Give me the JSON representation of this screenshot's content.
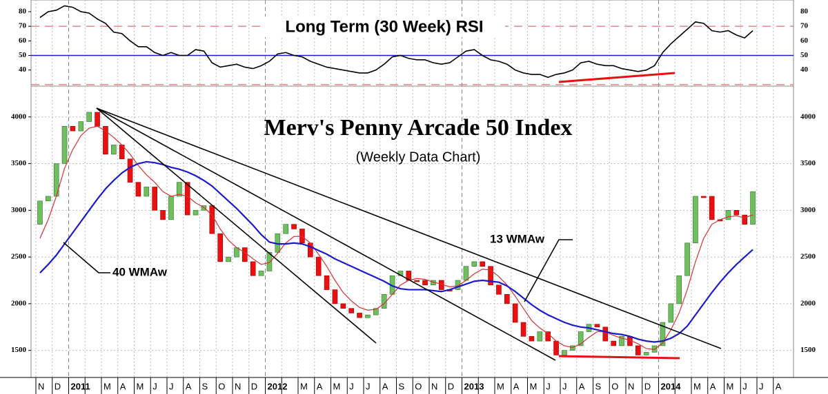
{
  "chart_data": [
    {
      "type": "line",
      "title": "Long Term (30 Week) RSI",
      "ylim": [
        29,
        88
      ],
      "yticks": [
        40,
        50,
        60,
        70,
        80
      ],
      "reference_lines": [
        {
          "value": 70,
          "color": "#e07070",
          "style": "dashed"
        },
        {
          "value": 50,
          "color": "#1a1acc",
          "style": "solid"
        },
        {
          "value": 30,
          "color": "#e07070",
          "style": "dashed"
        }
      ],
      "color": "#000000",
      "values": [
        76,
        80,
        81,
        84,
        83,
        80,
        79,
        75,
        72,
        66,
        65,
        60,
        56,
        56,
        52,
        50,
        52,
        50,
        50,
        54,
        53,
        45,
        42,
        43,
        44,
        42,
        41,
        43,
        46,
        51,
        52,
        50,
        49,
        46,
        44,
        42,
        41,
        40,
        39,
        38,
        38,
        40,
        44,
        49,
        50,
        48,
        47,
        47,
        45,
        44,
        45,
        49,
        53,
        54,
        50,
        47,
        46,
        44,
        40,
        38,
        37,
        37,
        35,
        37,
        38,
        40,
        45,
        46,
        44,
        43,
        43,
        41,
        40,
        39,
        40,
        43,
        52,
        58,
        63,
        68,
        73,
        72,
        67,
        66,
        67,
        64,
        62,
        67,
        null,
        null,
        null,
        null
      ]
    },
    {
      "type": "candlestick",
      "title": "Merv's Penny Arcade 50 Index",
      "subtitle": "(Weekly Data Chart)",
      "categories": [
        "N",
        null,
        "D",
        null,
        "2011",
        null,
        null,
        null,
        "M",
        null,
        "A",
        null,
        "M",
        null,
        "J",
        null,
        "J",
        null,
        "A",
        null,
        "S",
        null,
        "O",
        null,
        "N",
        null,
        "D",
        null,
        "2012",
        null,
        null,
        null,
        "M",
        null,
        "A",
        null,
        "M",
        null,
        "J",
        null,
        "J",
        null,
        "A",
        null,
        "S",
        null,
        "O",
        null,
        "N",
        null,
        "D",
        null,
        "2013",
        null,
        null,
        null,
        "M",
        null,
        "A",
        null,
        "M",
        null,
        "J",
        null,
        "J",
        null,
        "A",
        null,
        "S",
        null,
        "O",
        null,
        "N",
        null,
        "D",
        null,
        "2014",
        null,
        null,
        null,
        "M",
        null,
        "A",
        null,
        "M",
        null,
        "J",
        null,
        "J",
        null,
        "A",
        null
      ],
      "open": [
        2850,
        3100,
        3150,
        3500,
        3900,
        3850,
        3950,
        4050,
        3900,
        3600,
        3700,
        3550,
        3300,
        3150,
        3250,
        3000,
        2900,
        3150,
        3300,
        2950,
        3000,
        3050,
        2750,
        2450,
        2500,
        2600,
        2450,
        2300,
        2350,
        2550,
        2750,
        2850,
        2800,
        2650,
        2500,
        2300,
        2150,
        2000,
        1950,
        1900,
        1850,
        1880,
        1950,
        2100,
        2300,
        2350,
        2250,
        2250,
        2200,
        2250,
        2150,
        2150,
        2250,
        2400,
        2450,
        2400,
        2200,
        2100,
        2000,
        1800,
        1650,
        1600,
        1700,
        1600,
        1450,
        1500,
        1550,
        1700,
        1780,
        1750,
        1600,
        1550,
        1650,
        1550,
        1450,
        1480,
        1550,
        1800,
        2000,
        2300,
        2650,
        3150,
        3150,
        2900,
        2900,
        3000,
        2950,
        2850,
        null,
        null,
        null,
        null
      ],
      "close": [
        3100,
        3150,
        3500,
        3900,
        3850,
        3950,
        4050,
        3900,
        3600,
        3700,
        3550,
        3300,
        3150,
        3250,
        3000,
        2900,
        3150,
        3300,
        2950,
        3000,
        3050,
        2750,
        2450,
        2500,
        2600,
        2450,
        2300,
        2350,
        2550,
        2750,
        2850,
        2800,
        2650,
        2500,
        2300,
        2150,
        2000,
        1950,
        1900,
        1850,
        1880,
        1950,
        2100,
        2300,
        2350,
        2250,
        2250,
        2200,
        2250,
        2150,
        2150,
        2250,
        2400,
        2450,
        2400,
        2200,
        2100,
        2000,
        1800,
        1650,
        1600,
        1700,
        1600,
        1450,
        1500,
        1550,
        1700,
        1780,
        1750,
        1600,
        1550,
        1650,
        1550,
        1450,
        1480,
        1550,
        1800,
        2000,
        2300,
        2650,
        3150,
        3150,
        2900,
        2900,
        3000,
        2950,
        2850,
        3200,
        null,
        null,
        null,
        null
      ],
      "up_color": "#6fbf5f",
      "down_color": "#e81010",
      "series": [
        {
          "name": "13 WMAw",
          "color": "#d83030",
          "values": [
            2700,
            2900,
            3150,
            3450,
            3650,
            3800,
            3880,
            3900,
            3850,
            3780,
            3700,
            3600,
            3480,
            3380,
            3300,
            3200,
            3150,
            3170,
            3150,
            3080,
            3030,
            2950,
            2800,
            2680,
            2600,
            2550,
            2480,
            2420,
            2440,
            2540,
            2650,
            2720,
            2720,
            2650,
            2530,
            2400,
            2250,
            2120,
            2030,
            1960,
            1930,
            1940,
            2000,
            2100,
            2200,
            2250,
            2270,
            2260,
            2230,
            2210,
            2180,
            2190,
            2250,
            2320,
            2370,
            2360,
            2290,
            2200,
            2080,
            1950,
            1820,
            1740,
            1680,
            1600,
            1550,
            1530,
            1570,
            1640,
            1700,
            1700,
            1660,
            1630,
            1610,
            1570,
            1520,
            1510,
            1580,
            1720,
            1900,
            2150,
            2450,
            2700,
            2850,
            2900,
            2930,
            2940,
            2920,
            2950,
            null,
            null,
            null,
            null
          ]
        },
        {
          "name": "40 WMAw",
          "color": "#1a1acc",
          "values": [
            2330,
            2420,
            2520,
            2640,
            2760,
            2880,
            3000,
            3120,
            3230,
            3320,
            3400,
            3460,
            3500,
            3520,
            3510,
            3490,
            3460,
            3440,
            3410,
            3370,
            3320,
            3260,
            3180,
            3100,
            3020,
            2930,
            2840,
            2740,
            2660,
            2640,
            2640,
            2650,
            2640,
            2610,
            2570,
            2530,
            2480,
            2440,
            2400,
            2360,
            2320,
            2280,
            2240,
            2190,
            2160,
            2150,
            2150,
            2150,
            2140,
            2130,
            2150,
            2180,
            2210,
            2240,
            2250,
            2240,
            2230,
            2190,
            2130,
            2060,
            1990,
            1930,
            1880,
            1840,
            1800,
            1770,
            1750,
            1740,
            1720,
            1700,
            1680,
            1670,
            1650,
            1620,
            1600,
            1590,
            1600,
            1630,
            1680,
            1760,
            1880,
            2000,
            2120,
            2230,
            2330,
            2420,
            2500,
            2580,
            null,
            null,
            null,
            null
          ]
        }
      ],
      "ylim": [
        1210,
        4330
      ],
      "yticks": [
        1500,
        2000,
        2500,
        3000,
        3500,
        4000
      ],
      "grid": true
    }
  ]
}
